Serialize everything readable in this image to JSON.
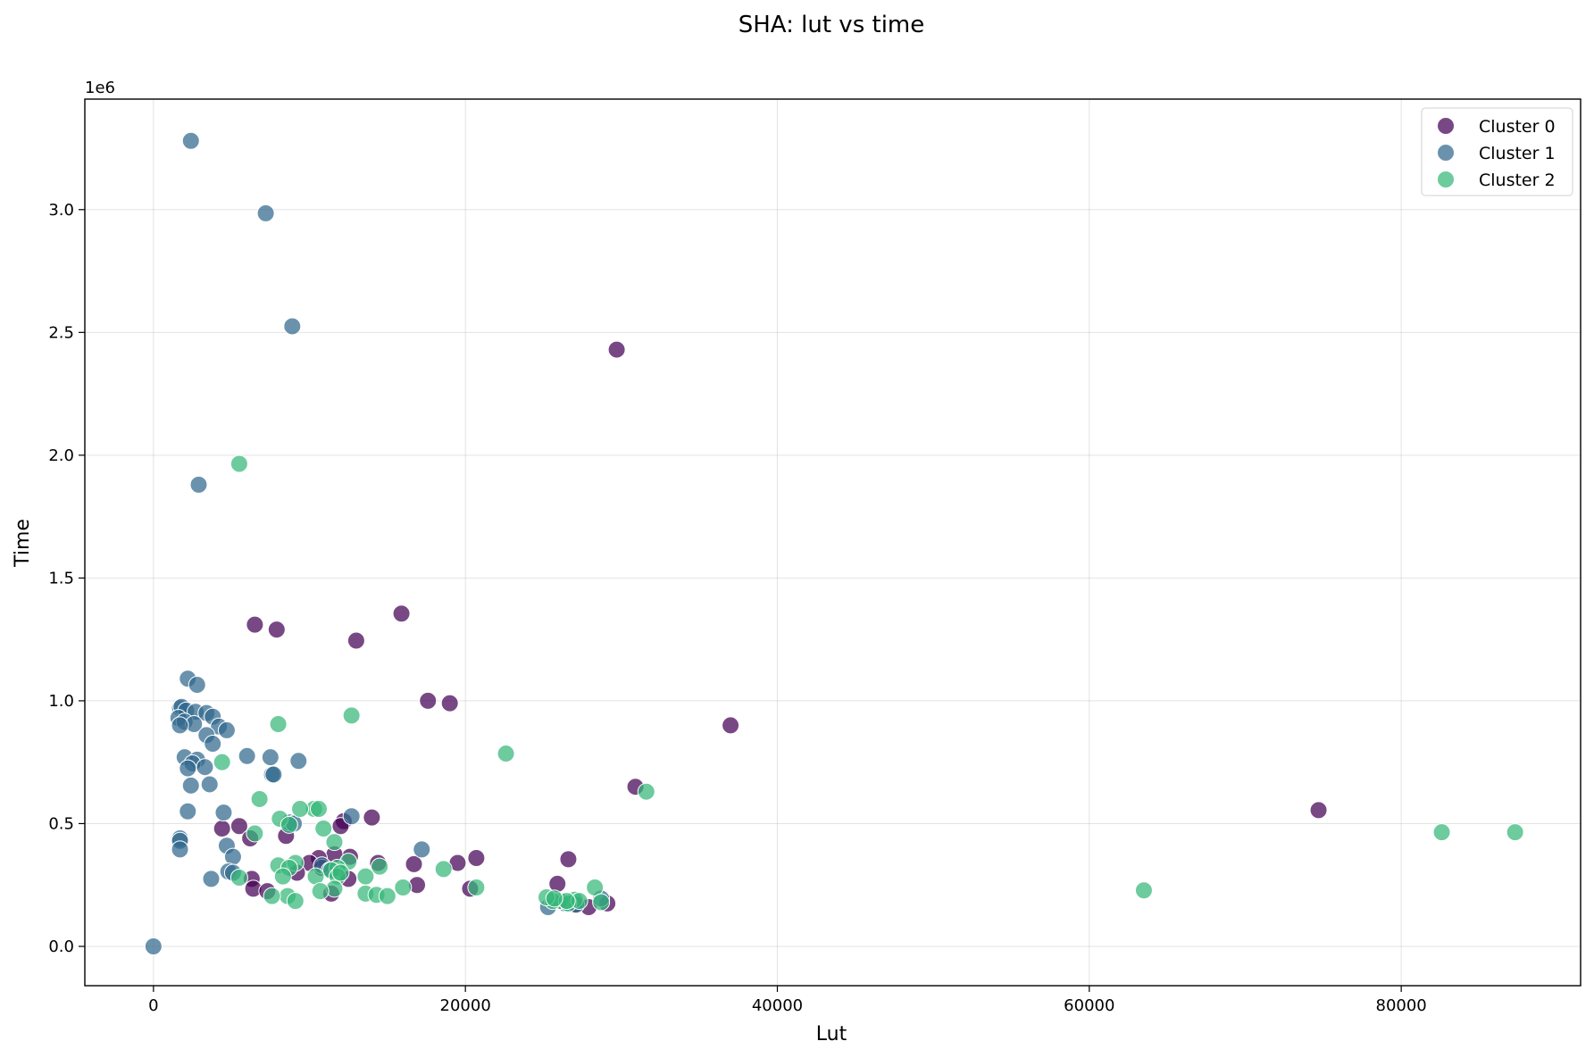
{
  "chart_data": {
    "type": "scatter",
    "title": "SHA: lut vs time",
    "xlabel": "Lut",
    "ylabel": "Time",
    "y_offset_label": "1e6",
    "xlim": [
      -4400,
      91500
    ],
    "ylim": [
      -160000,
      3450000
    ],
    "x_ticks": [
      0,
      20000,
      40000,
      60000,
      80000
    ],
    "x_tick_labels": [
      "0",
      "20000",
      "40000",
      "60000",
      "80000"
    ],
    "y_ticks": [
      0,
      500000,
      1000000,
      1500000,
      2000000,
      2500000,
      3000000
    ],
    "y_tick_labels": [
      "0.0",
      "0.5",
      "1.0",
      "1.5",
      "2.0",
      "2.5",
      "3.0"
    ],
    "grid": true,
    "legend_position": "top-right",
    "series": [
      {
        "name": "Cluster 0",
        "color": "#440154",
        "points": [
          [
            29700,
            2430000
          ],
          [
            15900,
            1355000
          ],
          [
            6500,
            1310000
          ],
          [
            7900,
            1290000
          ],
          [
            13000,
            1245000
          ],
          [
            17600,
            1000000
          ],
          [
            19000,
            990000
          ],
          [
            37000,
            900000
          ],
          [
            30900,
            650000
          ],
          [
            74700,
            555000
          ],
          [
            14000,
            525000
          ],
          [
            12200,
            510000
          ],
          [
            12000,
            490000
          ],
          [
            5500,
            490000
          ],
          [
            4400,
            480000
          ],
          [
            8500,
            450000
          ],
          [
            6200,
            440000
          ],
          [
            20700,
            360000
          ],
          [
            26600,
            355000
          ],
          [
            12600,
            365000
          ],
          [
            11600,
            375000
          ],
          [
            10600,
            360000
          ],
          [
            10000,
            340000
          ],
          [
            14400,
            340000
          ],
          [
            19500,
            340000
          ],
          [
            16700,
            335000
          ],
          [
            9200,
            300000
          ],
          [
            12500,
            275000
          ],
          [
            6300,
            275000
          ],
          [
            16900,
            250000
          ],
          [
            25900,
            255000
          ],
          [
            20300,
            235000
          ],
          [
            6400,
            235000
          ],
          [
            7300,
            225000
          ],
          [
            11400,
            215000
          ],
          [
            29100,
            175000
          ],
          [
            27900,
            160000
          ],
          [
            27000,
            170000
          ],
          [
            26300,
            180000
          ],
          [
            10800,
            320000
          ]
        ]
      },
      {
        "name": "Cluster 1",
        "color": "#31688e",
        "points": [
          [
            2400,
            3280000
          ],
          [
            7200,
            2985000
          ],
          [
            8900,
            2525000
          ],
          [
            2900,
            1880000
          ],
          [
            2200,
            1090000
          ],
          [
            2800,
            1065000
          ],
          [
            1700,
            970000
          ],
          [
            1800,
            975000
          ],
          [
            2100,
            960000
          ],
          [
            2700,
            955000
          ],
          [
            3400,
            950000
          ],
          [
            3800,
            935000
          ],
          [
            1600,
            930000
          ],
          [
            2000,
            915000
          ],
          [
            2600,
            905000
          ],
          [
            1700,
            900000
          ],
          [
            4200,
            895000
          ],
          [
            4700,
            880000
          ],
          [
            3400,
            860000
          ],
          [
            3800,
            825000
          ],
          [
            6000,
            775000
          ],
          [
            7500,
            770000
          ],
          [
            2000,
            770000
          ],
          [
            2800,
            760000
          ],
          [
            2500,
            745000
          ],
          [
            9300,
            755000
          ],
          [
            3300,
            730000
          ],
          [
            2200,
            725000
          ],
          [
            7600,
            700000
          ],
          [
            7700,
            700000
          ],
          [
            2400,
            655000
          ],
          [
            3600,
            660000
          ],
          [
            2200,
            550000
          ],
          [
            4500,
            545000
          ],
          [
            12700,
            530000
          ],
          [
            8700,
            505000
          ],
          [
            9000,
            500000
          ],
          [
            1700,
            440000
          ],
          [
            1700,
            430000
          ],
          [
            4700,
            410000
          ],
          [
            17200,
            395000
          ],
          [
            1700,
            395000
          ],
          [
            5100,
            365000
          ],
          [
            4800,
            305000
          ],
          [
            5100,
            300000
          ],
          [
            3700,
            275000
          ],
          [
            10800,
            330000
          ],
          [
            11300,
            310000
          ],
          [
            25300,
            160000
          ],
          [
            26400,
            175000
          ],
          [
            27100,
            170000
          ],
          [
            28700,
            195000
          ],
          [
            0,
            0
          ]
        ]
      },
      {
        "name": "Cluster 2",
        "color": "#35b779",
        "points": [
          [
            5500,
            1965000
          ],
          [
            12700,
            940000
          ],
          [
            8000,
            905000
          ],
          [
            22600,
            785000
          ],
          [
            4400,
            750000
          ],
          [
            31600,
            630000
          ],
          [
            6800,
            600000
          ],
          [
            10300,
            560000
          ],
          [
            10600,
            560000
          ],
          [
            9400,
            560000
          ],
          [
            8100,
            520000
          ],
          [
            8700,
            495000
          ],
          [
            10900,
            480000
          ],
          [
            6500,
            460000
          ],
          [
            82600,
            465000
          ],
          [
            87300,
            465000
          ],
          [
            11600,
            425000
          ],
          [
            14500,
            325000
          ],
          [
            18600,
            315000
          ],
          [
            12500,
            345000
          ],
          [
            9100,
            340000
          ],
          [
            8000,
            330000
          ],
          [
            8700,
            320000
          ],
          [
            11800,
            320000
          ],
          [
            11400,
            310000
          ],
          [
            13600,
            285000
          ],
          [
            10400,
            285000
          ],
          [
            8300,
            285000
          ],
          [
            5500,
            280000
          ],
          [
            11800,
            285000
          ],
          [
            12000,
            300000
          ],
          [
            16000,
            240000
          ],
          [
            20700,
            240000
          ],
          [
            11600,
            235000
          ],
          [
            10700,
            225000
          ],
          [
            63500,
            228000
          ],
          [
            13600,
            215000
          ],
          [
            14300,
            210000
          ],
          [
            15000,
            205000
          ],
          [
            8600,
            205000
          ],
          [
            7600,
            205000
          ],
          [
            9100,
            185000
          ],
          [
            28300,
            240000
          ],
          [
            27000,
            190000
          ],
          [
            26100,
            185000
          ],
          [
            25600,
            185000
          ],
          [
            25200,
            200000
          ],
          [
            26600,
            175000
          ],
          [
            27300,
            185000
          ],
          [
            28700,
            180000
          ],
          [
            26500,
            185000
          ],
          [
            25700,
            195000
          ]
        ]
      }
    ]
  }
}
